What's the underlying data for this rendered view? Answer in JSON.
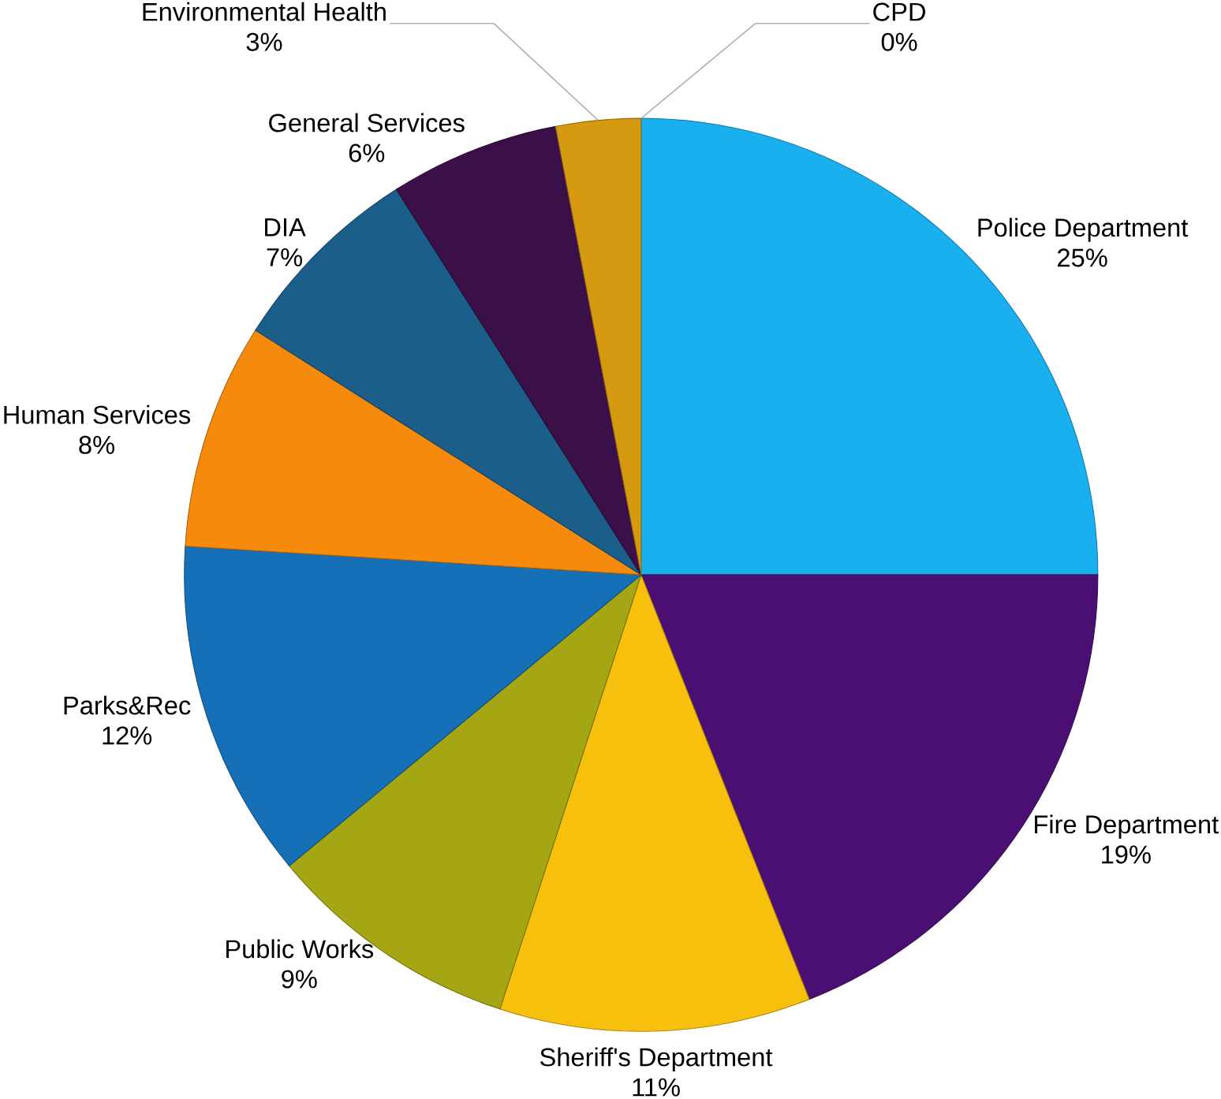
{
  "chart_data": {
    "type": "pie",
    "categories": [
      "Police Department",
      "Fire Department",
      "Sheriff's Department",
      "Public Works",
      "Parks&Rec",
      "Human Services",
      "DIA",
      "General Services",
      "Environmental Health",
      "CPD"
    ],
    "values": [
      25,
      19,
      11,
      9,
      12,
      8,
      7,
      6,
      3,
      0
    ],
    "value_labels": [
      "25%",
      "19%",
      "11%",
      "9%",
      "12%",
      "8%",
      "7%",
      "6%",
      "3%",
      "0%"
    ],
    "colors": [
      "#1ab0f0",
      "#4b0f73",
      "#f7c00c",
      "#a4a613",
      "#1670b8",
      "#f58a0c",
      "#1b5e8a",
      "#3b0f47",
      "#d59a10",
      "#6a7a10"
    ]
  }
}
